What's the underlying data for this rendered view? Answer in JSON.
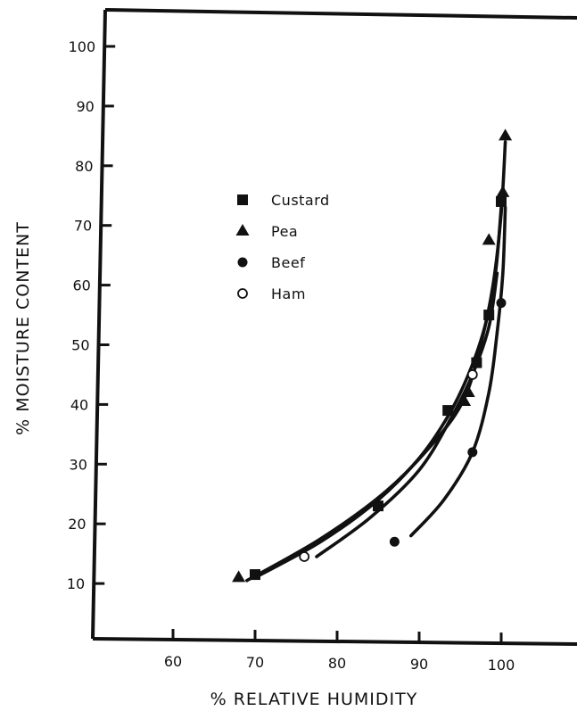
{
  "chart_data": {
    "type": "scatter",
    "title": "",
    "xlabel": "% RELATIVE HUMIDITY",
    "ylabel": "% MOISTURE CONTENT",
    "xlim": [
      50,
      109
    ],
    "ylim": [
      0,
      108
    ],
    "x_ticks": [
      "60",
      "70",
      "80",
      "90",
      "100"
    ],
    "y_ticks": [
      "10",
      "20",
      "30",
      "40",
      "50",
      "60",
      "70",
      "80",
      "90",
      "100"
    ],
    "grid": false,
    "legend_position": "center-left",
    "series": [
      {
        "name": "Custard",
        "marker": "square",
        "points": [
          [
            70,
            11.5
          ],
          [
            85,
            23
          ],
          [
            93.5,
            39
          ],
          [
            97,
            47
          ],
          [
            98.5,
            55
          ],
          [
            100,
            74
          ]
        ],
        "curve": [
          [
            70,
            11
          ],
          [
            78,
            17
          ],
          [
            85,
            24
          ],
          [
            90,
            31
          ],
          [
            93.5,
            38
          ],
          [
            96,
            45
          ],
          [
            98,
            53
          ],
          [
            99.3,
            62
          ],
          [
            100,
            73
          ]
        ]
      },
      {
        "name": "Pea",
        "marker": "triangle",
        "points": [
          [
            68,
            11
          ],
          [
            95.5,
            40.5
          ],
          [
            96,
            42
          ],
          [
            98.5,
            67.5
          ],
          [
            100.2,
            75.5
          ],
          [
            100.5,
            85
          ]
        ],
        "curve": [
          [
            69,
            10.5
          ],
          [
            78,
            17.5
          ],
          [
            86,
            25.5
          ],
          [
            92,
            34
          ],
          [
            95.5,
            41
          ],
          [
            97.5,
            50
          ],
          [
            99,
            60
          ],
          [
            100,
            72
          ],
          [
            100.5,
            84
          ]
        ]
      },
      {
        "name": "Beef",
        "marker": "filled-circle",
        "points": [
          [
            87,
            17
          ],
          [
            96.5,
            32
          ],
          [
            100,
            57
          ]
        ],
        "curve": [
          [
            89,
            18
          ],
          [
            93,
            24
          ],
          [
            96.5,
            32
          ],
          [
            98.5,
            42
          ],
          [
            99.5,
            52
          ],
          [
            100.2,
            62
          ],
          [
            100.5,
            73
          ]
        ]
      },
      {
        "name": "Ham",
        "marker": "open-circle",
        "points": [
          [
            76,
            14.5
          ],
          [
            96.5,
            45
          ]
        ],
        "curve": [
          [
            77.5,
            14.5
          ],
          [
            84,
            21
          ],
          [
            90,
            29
          ],
          [
            94,
            38
          ],
          [
            96.5,
            45
          ],
          [
            98.5,
            53
          ],
          [
            99.5,
            62
          ]
        ]
      }
    ]
  }
}
